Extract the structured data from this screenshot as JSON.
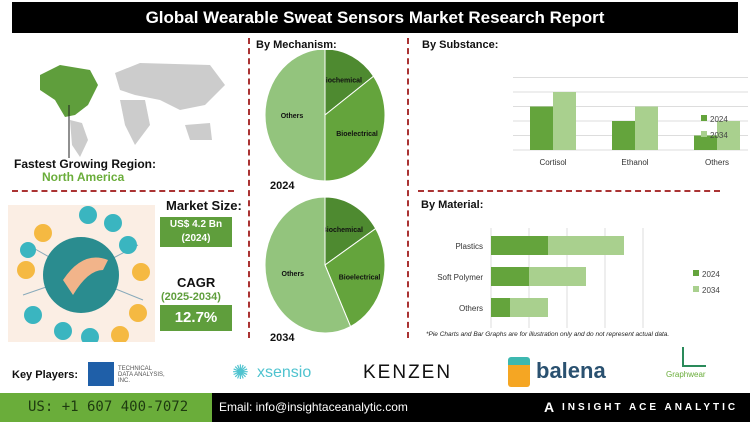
{
  "title": "Global Wearable Sweat Sensors Market Research Report",
  "region": {
    "label": "Fastest Growing Region:",
    "value": "North America"
  },
  "market_size": {
    "label": "Market Size:",
    "value": "US$ 4.2 Bn",
    "year": "(2024)"
  },
  "cagr": {
    "label": "CAGR",
    "period": "(2025-2034)",
    "value": "12.7%"
  },
  "mechanism": {
    "heading": "By Mechanism:",
    "year1": "2024",
    "year2": "2034"
  },
  "substance": {
    "heading": "By  Substance:"
  },
  "material": {
    "heading": "By Material:"
  },
  "note": "*Pie Charts and Bar Graphs are for illustration only and do not represent actual data.",
  "colors": {
    "dark": "#4e8a30",
    "mid": "#64a43c",
    "light": "#93c47d",
    "lighter": "#a9d08e"
  },
  "chart_data": [
    {
      "type": "pie",
      "year": "2024",
      "labels": [
        "Biochemical",
        "Bioelectrical",
        "Others"
      ],
      "values": [
        15,
        35,
        50
      ]
    },
    {
      "type": "pie",
      "year": "2034",
      "labels": [
        "Biochemical",
        "Bioelectrical",
        "Others"
      ],
      "values": [
        16,
        27,
        57
      ]
    },
    {
      "type": "bar",
      "categories": [
        "Cortisol",
        "Ethanol",
        "Others"
      ],
      "series": [
        {
          "name": "2024",
          "values": [
            3,
            2,
            1
          ]
        },
        {
          "name": "2034",
          "values": [
            4,
            3,
            2
          ]
        }
      ],
      "ylim": [
        0,
        5
      ],
      "grid": true,
      "legend": "right"
    },
    {
      "type": "bar",
      "orientation": "horizontal",
      "stacked": true,
      "categories": [
        "Plastics",
        "Soft Polymer",
        "Others"
      ],
      "series": [
        {
          "name": "2024",
          "values": [
            1.5,
            1.0,
            0.5
          ]
        },
        {
          "name": "2034",
          "values": [
            2.0,
            1.5,
            1.0
          ]
        }
      ],
      "xlim": [
        0,
        4
      ],
      "grid": true,
      "legend": "right"
    }
  ],
  "key_players": {
    "label": "Key Players:",
    "companies": [
      "TECHNICAL DATA ANALYSIS, INC.",
      "xsensio",
      "KENZEN",
      "balena",
      "Graphwear"
    ]
  },
  "footer": {
    "phone": "US: +1 607 400-7072",
    "email": "Email: info@insightaceanalytic.com",
    "brand": "INSIGHT ACE ANALYTIC"
  }
}
